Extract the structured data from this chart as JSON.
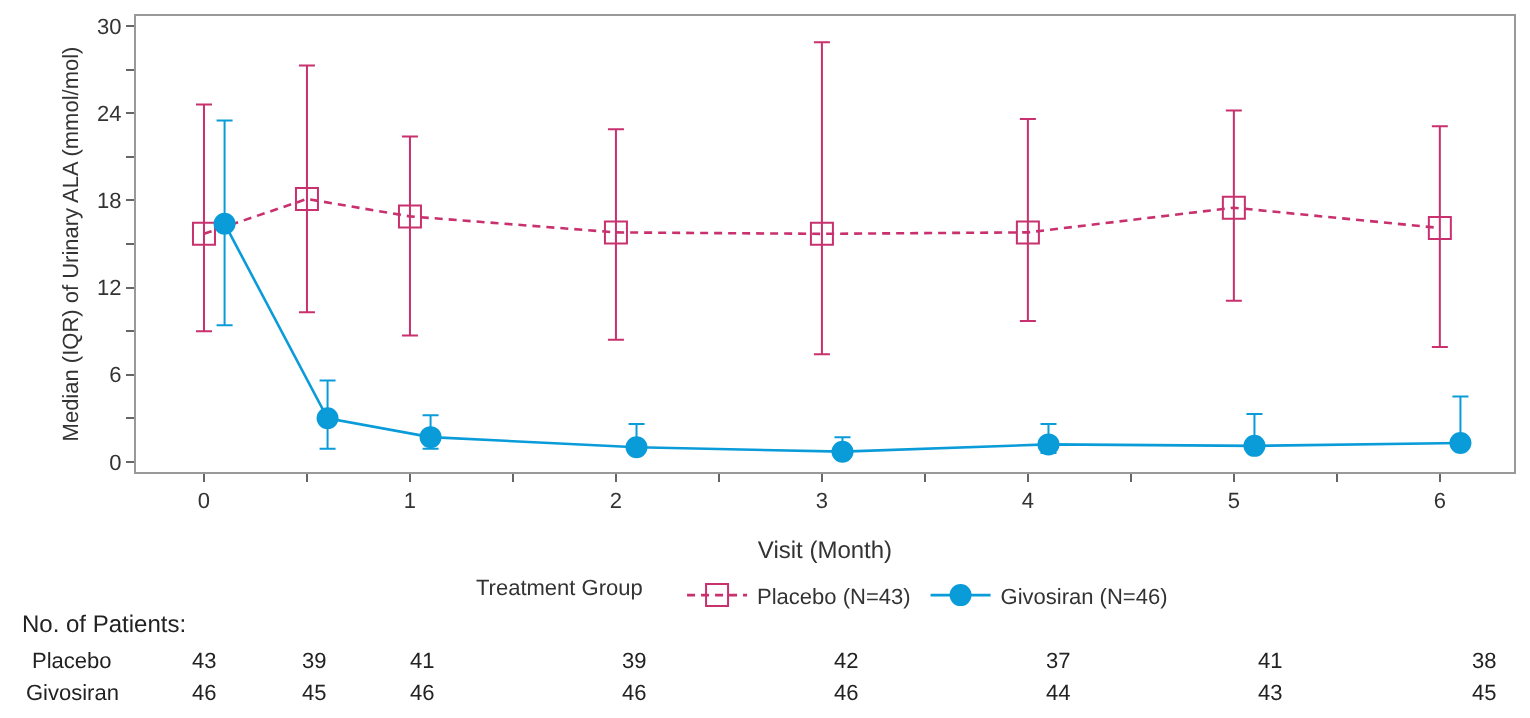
{
  "chart_data": {
    "type": "line",
    "xlabel": "Visit (Month)",
    "ylabel": "Median (IQR) of Urinary ALA (mmol/mol)",
    "legend_title": "Treatment Group",
    "legend": "bottom",
    "xlim": [
      -0.33,
      6.36
    ],
    "xticks": [
      0,
      {
        "value": 0.5,
        "label": null
      },
      1,
      {
        "value": 1.5,
        "label": null
      },
      2,
      {
        "value": 2.5,
        "label": null
      },
      3,
      {
        "value": 3.5,
        "label": null
      },
      4,
      {
        "value": 4.5,
        "label": null
      },
      5,
      {
        "value": 5.5,
        "label": null
      },
      6
    ],
    "ylim": [
      -0.7,
      30.7
    ],
    "yticks": [
      0,
      {
        "value": 3,
        "label": null
      },
      6,
      {
        "value": 9,
        "label": null
      },
      12,
      {
        "value": 15,
        "label": null
      },
      18,
      {
        "value": 21,
        "label": null
      },
      24,
      {
        "value": 27,
        "label": null
      },
      30
    ],
    "series": [
      {
        "name": "Placebo (N=43)",
        "color": "#c8306e",
        "marker": "square",
        "line_style": "dashed",
        "x": [
          0,
          0.5,
          1,
          2,
          3,
          4,
          5,
          6
        ],
        "values": [
          15.7,
          18.1,
          16.9,
          15.8,
          15.7,
          15.8,
          17.5,
          16.1
        ],
        "errors": [
          [
            9.0,
            24.6
          ],
          [
            10.3,
            27.3
          ],
          [
            8.7,
            22.4
          ],
          [
            8.4,
            22.9
          ],
          [
            7.4,
            28.9
          ],
          [
            9.7,
            23.6
          ],
          [
            11.1,
            24.2
          ],
          [
            7.9,
            23.1
          ]
        ]
      },
      {
        "name": "Givosiran (N=46)",
        "color": "#0a9bd9",
        "marker": "circle",
        "line_style": "solid",
        "x": [
          0.1,
          0.6,
          1.1,
          2.1,
          3.1,
          4.1,
          5.1,
          6.1
        ],
        "values": [
          16.4,
          3.0,
          1.7,
          1.0,
          0.7,
          1.2,
          1.1,
          1.3
        ],
        "errors": [
          [
            9.4,
            23.5
          ],
          [
            0.9,
            5.6
          ],
          [
            0.9,
            3.2
          ],
          [
            0.6,
            2.6
          ],
          [
            0.5,
            1.7
          ],
          [
            0.6,
            2.6
          ],
          [
            0.8,
            3.3
          ],
          [
            1.0,
            4.5
          ]
        ]
      }
    ],
    "annotations": [
      "No. of Patients:",
      "Placebo",
      "43",
      "39",
      "41",
      "39",
      "42",
      "37",
      "41",
      "38",
      "Givosiran",
      "46",
      "45",
      "46",
      "46",
      "46",
      "44",
      "43",
      "45"
    ]
  }
}
